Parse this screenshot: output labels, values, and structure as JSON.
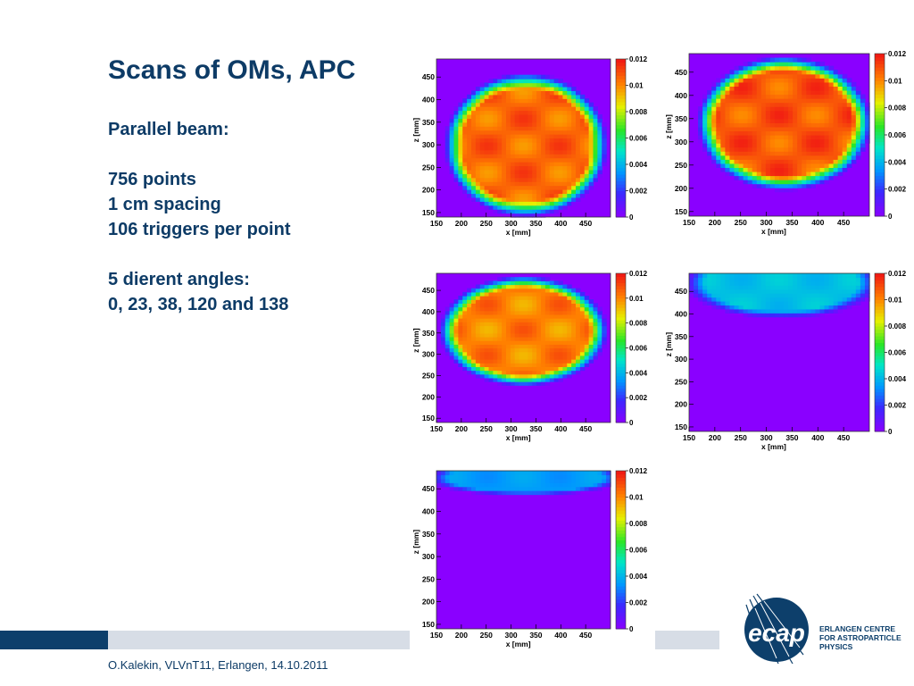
{
  "slide": {
    "title": "Scans of OMs, APC",
    "lines": [
      "Parallel beam:",
      "",
      "756 points",
      "1 cm spacing",
      "106 triggers per point",
      "",
      "5 dierent angles:",
      "0, 23, 38, 120 and 138"
    ],
    "footer": "O.Kalekin, VLVnT11, Erlangen, 14.10.2011"
  },
  "logo": {
    "name": "ecap",
    "lines": [
      "ERLANGEN CENTRE",
      "FOR ASTROPARTICLE",
      "PHYSICS"
    ]
  },
  "colors": {
    "title": "#0d3b66",
    "footer_dark": "#0d3f6b",
    "footer_light": "#d7dde6",
    "plot_background": "#8a00ff"
  },
  "chart_data": [
    {
      "type": "heatmap",
      "panel": "top-left",
      "xlabel": "x [mm]",
      "ylabel": "z [mm]",
      "xlim": [
        150,
        500
      ],
      "ylim": [
        140,
        490
      ],
      "x_ticks": [
        150,
        200,
        250,
        300,
        350,
        400,
        450
      ],
      "y_ticks": [
        150,
        200,
        250,
        300,
        350,
        400,
        450
      ],
      "colorbar_ticks": [
        "0",
        "0.002",
        "0.004",
        "0.006",
        "0.008",
        "0.01",
        "0.012"
      ],
      "zlim": [
        0,
        0.012
      ],
      "blob": {
        "cx": 330,
        "cz": 300,
        "rx": 165,
        "rz": 160,
        "peak": 0.0115
      }
    },
    {
      "type": "heatmap",
      "panel": "top-right",
      "xlabel": "x [mm]",
      "ylabel": "z [mm]",
      "xlim": [
        150,
        500
      ],
      "ylim": [
        140,
        490
      ],
      "x_ticks": [
        150,
        200,
        250,
        300,
        350,
        400,
        450
      ],
      "y_ticks": [
        150,
        200,
        250,
        300,
        350,
        400,
        450
      ],
      "colorbar_ticks": [
        "0",
        "0.002",
        "0.004",
        "0.006",
        "0.008",
        "0.01",
        "0.012"
      ],
      "zlim": [
        0,
        0.012
      ],
      "blob": {
        "cx": 335,
        "cz": 340,
        "rx": 170,
        "rz": 145,
        "peak": 0.0118
      }
    },
    {
      "type": "heatmap",
      "panel": "middle-left",
      "xlabel": "x [mm]",
      "ylabel": "z [mm]",
      "xlim": [
        150,
        500
      ],
      "ylim": [
        140,
        490
      ],
      "x_ticks": [
        150,
        200,
        250,
        300,
        350,
        400,
        450
      ],
      "y_ticks": [
        150,
        200,
        250,
        300,
        350,
        400,
        450
      ],
      "colorbar_ticks": [
        "0",
        "0.002",
        "0.004",
        "0.006",
        "0.008",
        "0.01",
        "0.012"
      ],
      "zlim": [
        0,
        0.012
      ],
      "blob": {
        "cx": 325,
        "cz": 355,
        "rx": 170,
        "rz": 130,
        "peak": 0.011
      }
    },
    {
      "type": "heatmap",
      "panel": "middle-right",
      "xlabel": "x [mm]",
      "ylabel": "z [mm]",
      "xlim": [
        150,
        500
      ],
      "ylim": [
        140,
        490
      ],
      "x_ticks": [
        150,
        200,
        250,
        300,
        350,
        400,
        450
      ],
      "y_ticks": [
        150,
        200,
        250,
        300,
        350,
        400,
        450
      ],
      "colorbar_ticks": [
        "0",
        "0.002",
        "0.004",
        "0.006",
        "0.008",
        "0.01",
        "0.012"
      ],
      "zlim": [
        0,
        0.012
      ],
      "blob": {
        "cx": 330,
        "cz": 470,
        "rx": 190,
        "rz": 80,
        "peak": 0.0046
      }
    },
    {
      "type": "heatmap",
      "panel": "bottom-left",
      "xlabel": "x [mm]",
      "ylabel": "z [mm]",
      "xlim": [
        150,
        500
      ],
      "ylim": [
        140,
        490
      ],
      "x_ticks": [
        150,
        200,
        250,
        300,
        350,
        400,
        450
      ],
      "y_ticks": [
        150,
        200,
        250,
        300,
        350,
        400,
        450
      ],
      "colorbar_ticks": [
        "0",
        "0.002",
        "0.004",
        "0.006",
        "0.008",
        "0.01",
        "0.012"
      ],
      "zlim": [
        0,
        0.012
      ],
      "blob": {
        "cx": 330,
        "cz": 475,
        "rx": 200,
        "rz": 40,
        "peak": 0.0038
      }
    }
  ]
}
